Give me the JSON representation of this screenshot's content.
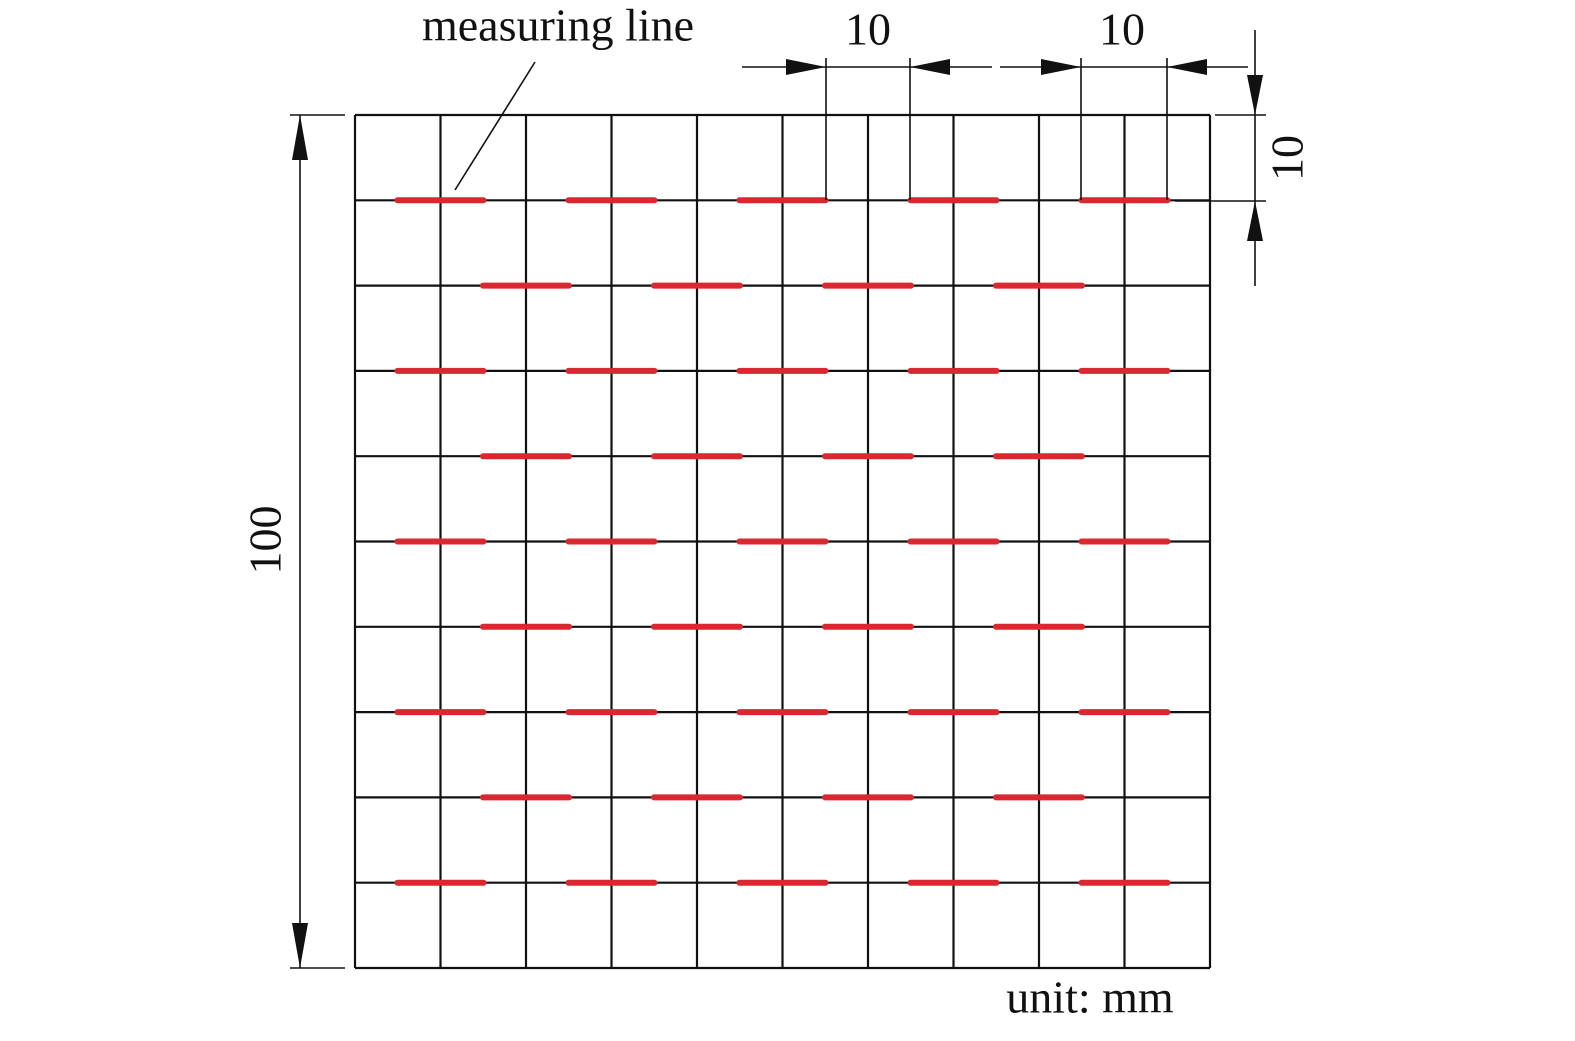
{
  "labels": {
    "measuring_line": "measuring line",
    "top_dim_1": "10",
    "top_dim_2": "10",
    "right_dim": "10",
    "left_dim": "100",
    "unit": "unit: mm"
  }
}
